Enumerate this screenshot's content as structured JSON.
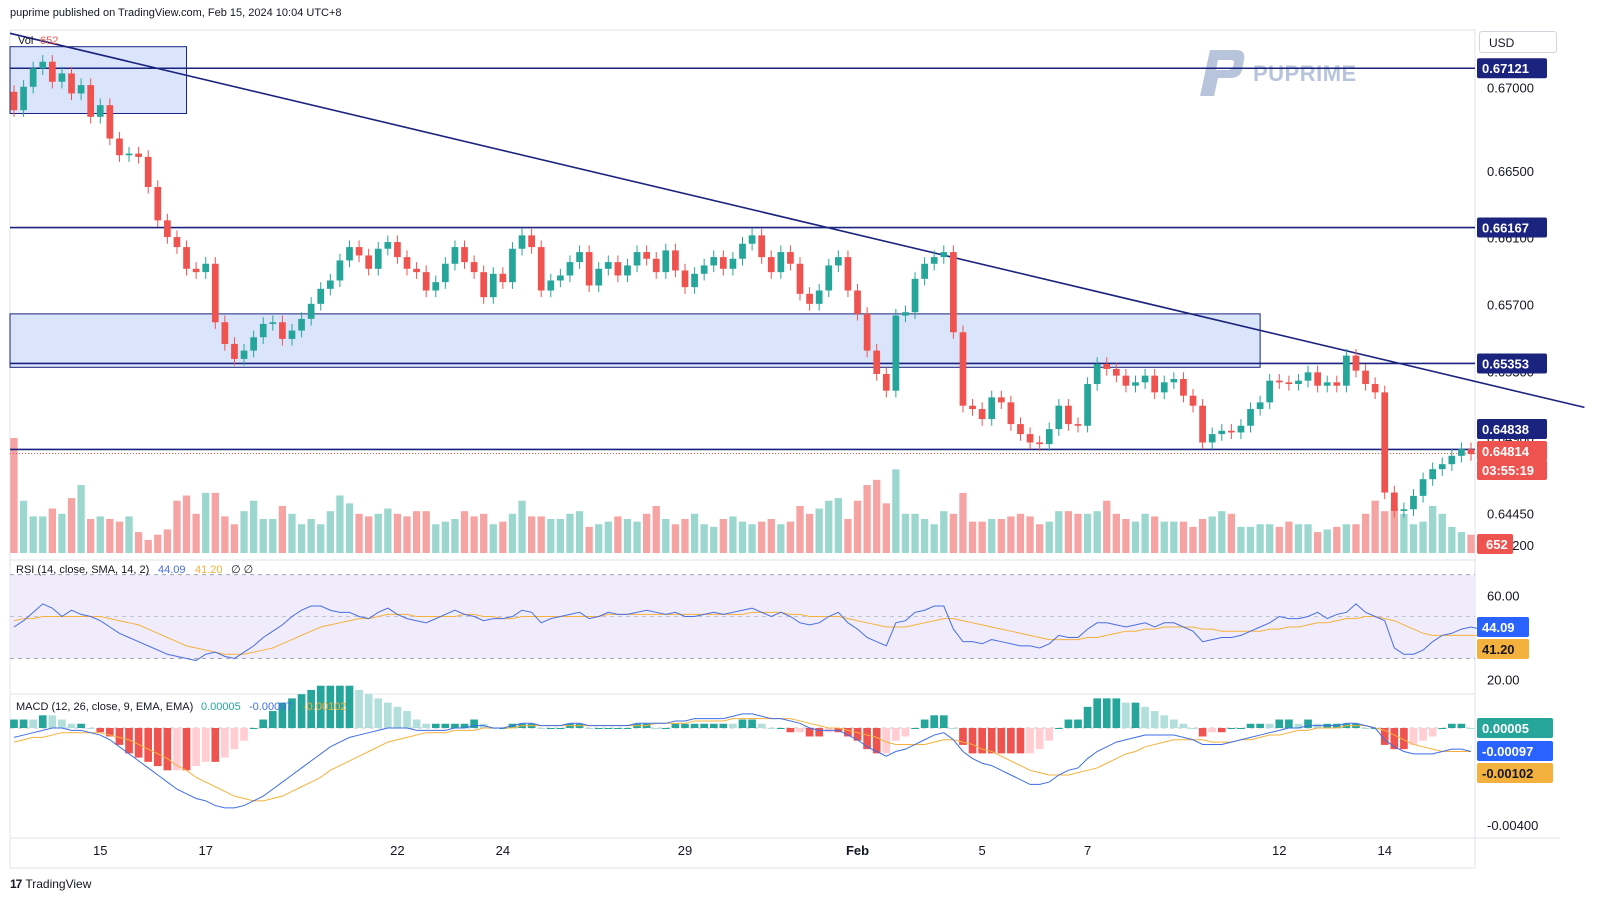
{
  "header": {
    "published": "puprime published on TradingView.com, Feb 15, 2024 10:04 UTC+8"
  },
  "currency_button": "USD",
  "brand": {
    "name": "PUPRIME"
  },
  "footer": {
    "logo": "17",
    "name": "TradingView"
  },
  "colors": {
    "up": "#26a69a",
    "down": "#ef5350",
    "vol_up": "#9bd6cf",
    "vol_down": "#f5a3a3",
    "level_line": "#1a237e",
    "zone_fill": "#d6e2fb",
    "rsi": "#4a6ee0",
    "rsi_ma": "#f5b13d",
    "macd": "#3f6ee6",
    "signal": "#f5b13d"
  },
  "volume_legend": {
    "name": "Vol",
    "value": "652"
  },
  "rsi_legend": {
    "params": "RSI (14, close, SMA, 14, 2)",
    "rsi": "44.09",
    "ma": "41.20",
    "extra": "∅ ∅"
  },
  "macd_legend": {
    "params": "MACD (12, 26, close, 9, EMA, EMA)",
    "hist": "0.00005",
    "macd": "-0.00097",
    "signal": "-0.00102"
  },
  "price_axis_ticks": [
    "0.67000",
    "0.66500",
    "0.66100",
    "0.65700",
    "0.65300",
    "0.64900",
    "0.64450",
    "0.64200"
  ],
  "rsi_axis_ticks": [
    "60.00",
    "20.00"
  ],
  "macd_axis_ticks": [
    "-0.00400"
  ],
  "x_axis_ticks": [
    "15",
    "17",
    "22",
    "24",
    "29",
    "Feb",
    "5",
    "7",
    "12",
    "14"
  ],
  "price_badges": [
    {
      "value": "0.67121",
      "style": "level"
    },
    {
      "value": "0.66167",
      "style": "level"
    },
    {
      "value": "0.65353",
      "style": "level"
    },
    {
      "value": "0.64838",
      "style": "level"
    },
    {
      "value": "0.64814",
      "style": "current"
    },
    {
      "value": "03:55:19",
      "style": "countdown"
    },
    {
      "value": "652",
      "style": "volume"
    }
  ],
  "rsi_badges": [
    {
      "value": "44.09",
      "style": "rsi"
    },
    {
      "value": "41.20",
      "style": "rsi_ma"
    }
  ],
  "macd_badges": [
    {
      "value": "0.00005",
      "style": "hist"
    },
    {
      "value": "-0.00097",
      "style": "macd"
    },
    {
      "value": "-0.00102",
      "style": "signal"
    }
  ],
  "chart_data": {
    "type": "candlestick",
    "symbol_currency": "USD",
    "timeframe_note": "4-hour candles, mid-Jan to Feb 15 2024",
    "y_range": [
      0.642,
      0.6735
    ],
    "horizontal_levels": [
      0.67121,
      0.66167,
      0.65353,
      0.64838
    ],
    "current_price": 0.64814,
    "zones": [
      {
        "x_start": 0,
        "x_end": 18,
        "y_low": 0.6685,
        "y_high": 0.6725
      },
      {
        "x_start": 0,
        "x_end": 130,
        "y_low": 0.6533,
        "y_high": 0.6565
      }
    ],
    "trendline": {
      "from": {
        "x": 0,
        "y": 0.6733
      },
      "to": {
        "x": 163,
        "y": 0.6509
      }
    },
    "x_ticks": [
      {
        "x": 9,
        "label": "15"
      },
      {
        "x": 20,
        "label": "17"
      },
      {
        "x": 40,
        "label": "22"
      },
      {
        "x": 51,
        "label": "24"
      },
      {
        "x": 70,
        "label": "29"
      },
      {
        "x": 88,
        "label": "Feb"
      },
      {
        "x": 101,
        "label": "5"
      },
      {
        "x": 112,
        "label": "7"
      },
      {
        "x": 132,
        "label": "12"
      },
      {
        "x": 143,
        "label": "14"
      }
    ],
    "candles_close": [
      0.6687,
      0.6701,
      0.6712,
      0.6716,
      0.6704,
      0.6709,
      0.6697,
      0.6702,
      0.6683,
      0.669,
      0.667,
      0.666,
      0.6661,
      0.6659,
      0.6641,
      0.6621,
      0.6611,
      0.6605,
      0.6592,
      0.659,
      0.6595,
      0.656,
      0.6547,
      0.6538,
      0.6543,
      0.6551,
      0.6559,
      0.656,
      0.655,
      0.6555,
      0.6562,
      0.6571,
      0.658,
      0.6585,
      0.6597,
      0.6605,
      0.66,
      0.6592,
      0.6604,
      0.6608,
      0.6599,
      0.6592,
      0.659,
      0.6579,
      0.6584,
      0.6595,
      0.6605,
      0.6596,
      0.659,
      0.6575,
      0.6589,
      0.6584,
      0.6604,
      0.6612,
      0.6605,
      0.6579,
      0.6585,
      0.6588,
      0.6596,
      0.6602,
      0.6582,
      0.6592,
      0.6596,
      0.6588,
      0.6594,
      0.6602,
      0.6598,
      0.659,
      0.6603,
      0.6591,
      0.6581,
      0.6589,
      0.6594,
      0.6599,
      0.6592,
      0.6598,
      0.6607,
      0.6612,
      0.6599,
      0.659,
      0.6602,
      0.6595,
      0.6577,
      0.6571,
      0.6579,
      0.6594,
      0.6599,
      0.6579,
      0.6565,
      0.6543,
      0.6529,
      0.6519,
      0.6564,
      0.6566,
      0.6586,
      0.6595,
      0.6599,
      0.6602,
      0.6554,
      0.651,
      0.6508,
      0.6502,
      0.6515,
      0.6512,
      0.6499,
      0.6493,
      0.6488,
      0.6487,
      0.6496,
      0.651,
      0.6499,
      0.6498,
      0.6523,
      0.6535,
      0.6532,
      0.6528,
      0.6522,
      0.6524,
      0.6528,
      0.6518,
      0.6524,
      0.6526,
      0.6516,
      0.651,
      0.6488,
      0.6493,
      0.6495,
      0.6494,
      0.6498,
      0.6508,
      0.6512,
      0.6525,
      0.6524,
      0.6523,
      0.6525,
      0.653,
      0.6522,
      0.6524,
      0.6522,
      0.654,
      0.6531,
      0.6523,
      0.6518,
      0.6458,
      0.6447,
      0.6448,
      0.6456,
      0.6466,
      0.6472,
      0.6475,
      0.648,
      0.6484,
      0.6481
    ],
    "candles_open": [
      0.6698,
      0.6687,
      0.6701,
      0.6712,
      0.6716,
      0.6704,
      0.6709,
      0.6697,
      0.6702,
      0.6683,
      0.669,
      0.667,
      0.666,
      0.6661,
      0.6659,
      0.6641,
      0.6621,
      0.6611,
      0.6605,
      0.6592,
      0.659,
      0.6595,
      0.656,
      0.6547,
      0.6538,
      0.6543,
      0.6551,
      0.6559,
      0.656,
      0.655,
      0.6555,
      0.6562,
      0.6571,
      0.658,
      0.6585,
      0.6597,
      0.6605,
      0.66,
      0.6592,
      0.6604,
      0.6608,
      0.6599,
      0.6592,
      0.659,
      0.6579,
      0.6584,
      0.6595,
      0.6605,
      0.6596,
      0.659,
      0.6575,
      0.6589,
      0.6584,
      0.6604,
      0.6612,
      0.6605,
      0.6579,
      0.6585,
      0.6588,
      0.6596,
      0.6602,
      0.6582,
      0.6592,
      0.6596,
      0.6588,
      0.6594,
      0.6602,
      0.6598,
      0.659,
      0.6603,
      0.6591,
      0.6581,
      0.6589,
      0.6594,
      0.6599,
      0.6592,
      0.6598,
      0.6607,
      0.6612,
      0.6599,
      0.659,
      0.6602,
      0.6595,
      0.6577,
      0.6571,
      0.6579,
      0.6594,
      0.6599,
      0.6579,
      0.6565,
      0.6543,
      0.6529,
      0.6519,
      0.6564,
      0.6566,
      0.6586,
      0.6595,
      0.6599,
      0.6602,
      0.6554,
      0.651,
      0.6508,
      0.6502,
      0.6515,
      0.6512,
      0.6499,
      0.6493,
      0.6488,
      0.6487,
      0.6496,
      0.651,
      0.6499,
      0.6498,
      0.6523,
      0.6535,
      0.6532,
      0.6528,
      0.6522,
      0.6524,
      0.6528,
      0.6518,
      0.6524,
      0.6526,
      0.6516,
      0.651,
      0.6488,
      0.6493,
      0.6495,
      0.6494,
      0.6498,
      0.6508,
      0.6512,
      0.6525,
      0.6524,
      0.6523,
      0.6525,
      0.653,
      0.6522,
      0.6524,
      0.6522,
      0.654,
      0.6531,
      0.6523,
      0.6518,
      0.6458,
      0.6447,
      0.6448,
      0.6456,
      0.6466,
      0.6472,
      0.6475,
      0.648,
      0.6484
    ],
    "rsi": [
      45,
      48,
      52,
      56,
      54,
      50,
      53,
      51,
      50,
      48,
      45,
      42,
      40,
      38,
      36,
      34,
      32,
      31,
      30,
      29,
      32,
      33,
      31,
      30,
      33,
      36,
      40,
      43,
      46,
      50,
      53,
      55,
      55,
      53,
      52,
      52,
      50,
      49,
      52,
      54,
      51,
      49,
      48,
      47,
      49,
      51,
      53,
      51,
      50,
      48,
      49,
      49,
      50,
      53,
      52,
      47,
      49,
      50,
      51,
      52,
      49,
      50,
      52,
      51,
      51,
      52,
      53,
      52,
      51,
      52,
      50,
      50,
      51,
      52,
      51,
      52,
      53,
      54,
      52,
      50,
      52,
      50,
      47,
      46,
      47,
      50,
      52,
      47,
      44,
      40,
      38,
      36,
      47,
      48,
      52,
      53,
      55,
      55,
      44,
      38,
      38,
      37,
      39,
      38,
      37,
      36,
      36,
      35,
      37,
      41,
      40,
      40,
      44,
      47,
      47,
      46,
      45,
      46,
      47,
      45,
      47,
      47,
      45,
      43,
      38,
      39,
      40,
      40,
      41,
      43,
      45,
      47,
      50,
      49,
      49,
      50,
      52,
      49,
      51,
      52,
      56,
      52,
      50,
      48,
      35,
      32,
      32,
      34,
      38,
      41,
      42,
      44,
      45,
      44
    ],
    "rsi_ma": [
      48,
      49,
      49,
      50,
      50,
      50,
      50,
      50,
      50,
      50,
      49,
      48,
      47,
      46,
      44,
      42,
      40,
      38,
      36,
      35,
      34,
      33,
      32,
      32,
      32,
      33,
      34,
      35,
      37,
      39,
      41,
      43,
      45,
      46,
      47,
      48,
      49,
      49,
      50,
      51,
      51,
      51,
      50,
      50,
      50,
      50,
      50,
      51,
      51,
      50,
      50,
      49,
      49,
      50,
      50,
      50,
      50,
      50,
      50,
      50,
      50,
      50,
      51,
      51,
      51,
      51,
      51,
      51,
      51,
      51,
      51,
      51,
      51,
      51,
      51,
      51,
      51,
      52,
      52,
      52,
      52,
      51,
      51,
      50,
      50,
      50,
      50,
      49,
      48,
      47,
      46,
      45,
      45,
      45,
      46,
      47,
      48,
      49,
      49,
      48,
      47,
      46,
      45,
      44,
      43,
      42,
      41,
      40,
      39,
      39,
      39,
      39,
      40,
      40,
      41,
      42,
      43,
      43,
      44,
      44,
      45,
      45,
      45,
      45,
      44,
      44,
      43,
      43,
      43,
      43,
      43,
      44,
      44,
      45,
      45,
      46,
      47,
      47,
      48,
      49,
      49,
      50,
      50,
      49,
      48,
      46,
      44,
      42,
      41,
      41,
      41,
      41,
      41,
      41
    ],
    "macd": [
      -0.0004,
      -0.0003,
      -0.0002,
      -0.0001,
      0.0,
      0.0,
      -0.0001,
      -0.0001,
      -0.0002,
      -0.0003,
      -0.0005,
      -0.0008,
      -0.0011,
      -0.0014,
      -0.0017,
      -0.002,
      -0.0023,
      -0.0026,
      -0.0028,
      -0.003,
      -0.0031,
      -0.0033,
      -0.0034,
      -0.0034,
      -0.0033,
      -0.0031,
      -0.0029,
      -0.0026,
      -0.0023,
      -0.002,
      -0.0017,
      -0.0014,
      -0.0011,
      -0.0008,
      -0.0006,
      -0.0004,
      -0.0003,
      -0.0002,
      -0.0001,
      0.0,
      0.0,
      0.0,
      -0.0001,
      -0.0001,
      -0.0001,
      -0.0001,
      0.0,
      0.0,
      0.0001,
      0.0001,
      0.0,
      0.0,
      0.0001,
      0.0002,
      0.0002,
      0.0001,
      0.0001,
      0.0001,
      0.0002,
      0.0002,
      0.0001,
      0.0001,
      0.0001,
      0.0001,
      0.0001,
      0.0002,
      0.0002,
      0.0002,
      0.0002,
      0.0003,
      0.0003,
      0.0004,
      0.0004,
      0.0004,
      0.0004,
      0.0005,
      0.0006,
      0.0006,
      0.0005,
      0.0004,
      0.0004,
      0.0003,
      0.0002,
      0.0,
      -0.0001,
      -0.0001,
      -0.0001,
      -0.0003,
      -0.0005,
      -0.0008,
      -0.001,
      -0.0012,
      -0.001,
      -0.0009,
      -0.0007,
      -0.0005,
      -0.0003,
      -0.0002,
      -0.0005,
      -0.001,
      -0.0013,
      -0.0015,
      -0.0016,
      -0.0018,
      -0.002,
      -0.0022,
      -0.0024,
      -0.0024,
      -0.0023,
      -0.002,
      -0.0018,
      -0.0017,
      -0.0013,
      -0.001,
      -0.0008,
      -0.0006,
      -0.0005,
      -0.0004,
      -0.0003,
      -0.0003,
      -0.0003,
      -0.0003,
      -0.0004,
      -0.0005,
      -0.0007,
      -0.0007,
      -0.0007,
      -0.0006,
      -0.0005,
      -0.0004,
      -0.0003,
      -0.0002,
      -0.0001,
      0.0,
      0.0,
      0.0001,
      0.0001,
      0.0001,
      0.0001,
      0.0002,
      0.0002,
      0.0001,
      0.0,
      -0.0005,
      -0.0008,
      -0.001,
      -0.0011,
      -0.0011,
      -0.0011,
      -0.001,
      -0.0009,
      -0.0009,
      -0.001
    ],
    "macd_signal": [
      -0.0006,
      -0.0005,
      -0.0004,
      -0.0004,
      -0.0003,
      -0.0002,
      -0.0002,
      -0.0002,
      -0.0002,
      -0.0002,
      -0.0003,
      -0.0004,
      -0.0005,
      -0.0007,
      -0.0009,
      -0.0011,
      -0.0013,
      -0.0016,
      -0.0018,
      -0.0021,
      -0.0023,
      -0.0025,
      -0.0027,
      -0.0029,
      -0.003,
      -0.0031,
      -0.0031,
      -0.003,
      -0.0029,
      -0.0027,
      -0.0025,
      -0.0023,
      -0.0021,
      -0.0018,
      -0.0016,
      -0.0014,
      -0.0012,
      -0.001,
      -0.0008,
      -0.0006,
      -0.0005,
      -0.0004,
      -0.0003,
      -0.0002,
      -0.0002,
      -0.0002,
      -0.0001,
      -0.0001,
      -0.0001,
      0.0,
      0.0,
      0.0,
      0.0,
      0.0001,
      0.0001,
      0.0001,
      0.0001,
      0.0001,
      0.0001,
      0.0001,
      0.0001,
      0.0001,
      0.0001,
      0.0001,
      0.0001,
      0.0001,
      0.0001,
      0.0002,
      0.0002,
      0.0002,
      0.0002,
      0.0003,
      0.0003,
      0.0003,
      0.0003,
      0.0004,
      0.0004,
      0.0004,
      0.0004,
      0.0004,
      0.0004,
      0.0004,
      0.0003,
      0.0002,
      0.0001,
      0.0,
      0.0,
      -0.0001,
      -0.0002,
      -0.0003,
      -0.0004,
      -0.0006,
      -0.0007,
      -0.0007,
      -0.0007,
      -0.0007,
      -0.0006,
      -0.0005,
      -0.0005,
      -0.0006,
      -0.0007,
      -0.0009,
      -0.001,
      -0.0012,
      -0.0014,
      -0.0016,
      -0.0018,
      -0.0019,
      -0.002,
      -0.002,
      -0.002,
      -0.0019,
      -0.0018,
      -0.0017,
      -0.0015,
      -0.0013,
      -0.0011,
      -0.001,
      -0.0008,
      -0.0007,
      -0.0006,
      -0.0005,
      -0.0005,
      -0.0005,
      -0.0005,
      -0.0006,
      -0.0006,
      -0.0006,
      -0.0005,
      -0.0005,
      -0.0004,
      -0.0003,
      -0.0003,
      -0.0002,
      -0.0001,
      -0.0001,
      0.0,
      0.0,
      0.0,
      0.0001,
      0.0001,
      0.0001,
      0.0,
      -0.0001,
      -0.0003,
      -0.0005,
      -0.0007,
      -0.0008,
      -0.0009,
      -0.001,
      -0.001,
      -0.001,
      -0.001
    ],
    "volume": [
      88,
      40,
      28,
      28,
      34,
      30,
      42,
      52,
      26,
      28,
      26,
      24,
      28,
      16,
      10,
      14,
      18,
      40,
      44,
      30,
      46,
      46,
      28,
      22,
      32,
      40,
      26,
      26,
      36,
      30,
      22,
      26,
      22,
      32,
      44,
      38,
      30,
      28,
      30,
      34,
      30,
      28,
      32,
      32,
      22,
      24,
      26,
      32,
      28,
      30,
      22,
      24,
      30,
      40,
      28,
      28,
      26,
      26,
      30,
      32,
      20,
      22,
      24,
      28,
      26,
      24,
      30,
      36,
      26,
      22,
      26,
      30,
      22,
      20,
      26,
      28,
      24,
      22,
      24,
      26,
      22,
      24,
      36,
      30,
      34,
      40,
      42,
      26,
      40,
      52,
      56,
      38,
      64,
      30,
      30,
      26,
      22,
      32,
      30,
      46,
      24,
      24,
      26,
      26,
      28,
      30,
      28,
      22,
      24,
      32,
      32,
      30,
      30,
      32,
      40,
      30,
      26,
      24,
      30,
      28,
      24,
      24,
      24,
      20,
      26,
      28,
      32,
      30,
      20,
      20,
      22,
      22,
      20,
      24,
      22,
      22,
      16,
      18,
      20,
      22,
      22,
      30,
      40,
      32,
      34,
      30,
      22,
      24,
      36,
      30,
      20,
      16,
      14,
      10
    ]
  }
}
